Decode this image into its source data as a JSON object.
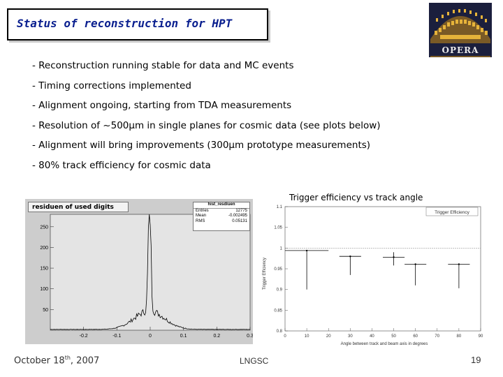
{
  "title": "Status of reconstruction for HPT",
  "logo": {
    "text": "OPERA",
    "icon": "opera-logo"
  },
  "bullets": [
    "- Reconstruction running stable for data and MC events",
    "- Timing corrections implemented",
    "- Alignment ongoing, starting from TDA measurements",
    "- Resolution of ~500µm in single planes for cosmic data (see plots below)",
    "- Alignment will bring improvements (300µm prototype measurements)",
    "- 80% track efficiency for cosmic data"
  ],
  "chart_data": [
    {
      "type": "bar",
      "title": "residuen of used digits",
      "stats": {
        "name": "hist_resdiuen",
        "rows": [
          {
            "label": "Entries",
            "value": "12775"
          },
          {
            "label": "Mean",
            "value": "-0.002495"
          },
          {
            "label": "RMS",
            "value": "0.05131"
          }
        ]
      },
      "xlim": [
        -0.3,
        0.3
      ],
      "ylim": [
        0,
        280
      ],
      "xticks": [
        "-0.2",
        "-0.1",
        "0",
        "0.1",
        "0.2",
        "0.3"
      ],
      "yticks": [
        "50",
        "100",
        "150",
        "200",
        "250"
      ],
      "distribution": {
        "center": -0.002,
        "peak": 270,
        "core_width": 0.004,
        "tail_height": 45,
        "tail_width": 0.045,
        "baseline": 2
      }
    },
    {
      "type": "scatter",
      "title": "Trigger efficiency vs track angle",
      "legend": "Trigger Efficiency",
      "xlabel": "Angle between track and beam axis in degrees",
      "ylabel": "Trigger Efficiency",
      "xlim": [
        0,
        90
      ],
      "ylim": [
        0.8,
        1.1
      ],
      "xticks": [
        "0",
        "10",
        "20",
        "30",
        "40",
        "50",
        "60",
        "70",
        "80",
        "90"
      ],
      "yticks": [
        "0.8",
        "0.85",
        "0.9",
        "0.95",
        "1",
        "1.05",
        "1.1"
      ],
      "points": [
        {
          "x": 10,
          "y": 0.994,
          "xerr": 10,
          "ylo": 0.9,
          "yhi": 0.994
        },
        {
          "x": 30,
          "y": 0.98,
          "xerr": 5,
          "ylo": 0.935,
          "yhi": 0.98
        },
        {
          "x": 50,
          "y": 0.978,
          "xerr": 5,
          "ylo": 0.958,
          "yhi": 0.99
        },
        {
          "x": 60,
          "y": 0.961,
          "xerr": 5,
          "ylo": 0.91,
          "yhi": 0.961
        },
        {
          "x": 80,
          "y": 0.961,
          "xerr": 5,
          "ylo": 0.903,
          "yhi": 0.961
        }
      ],
      "reference_line": 1
    }
  ],
  "footer": {
    "date_main": "October 18",
    "date_sup": "th",
    "date_year": ", 2007",
    "venue": "LNGSC",
    "page": "19"
  }
}
